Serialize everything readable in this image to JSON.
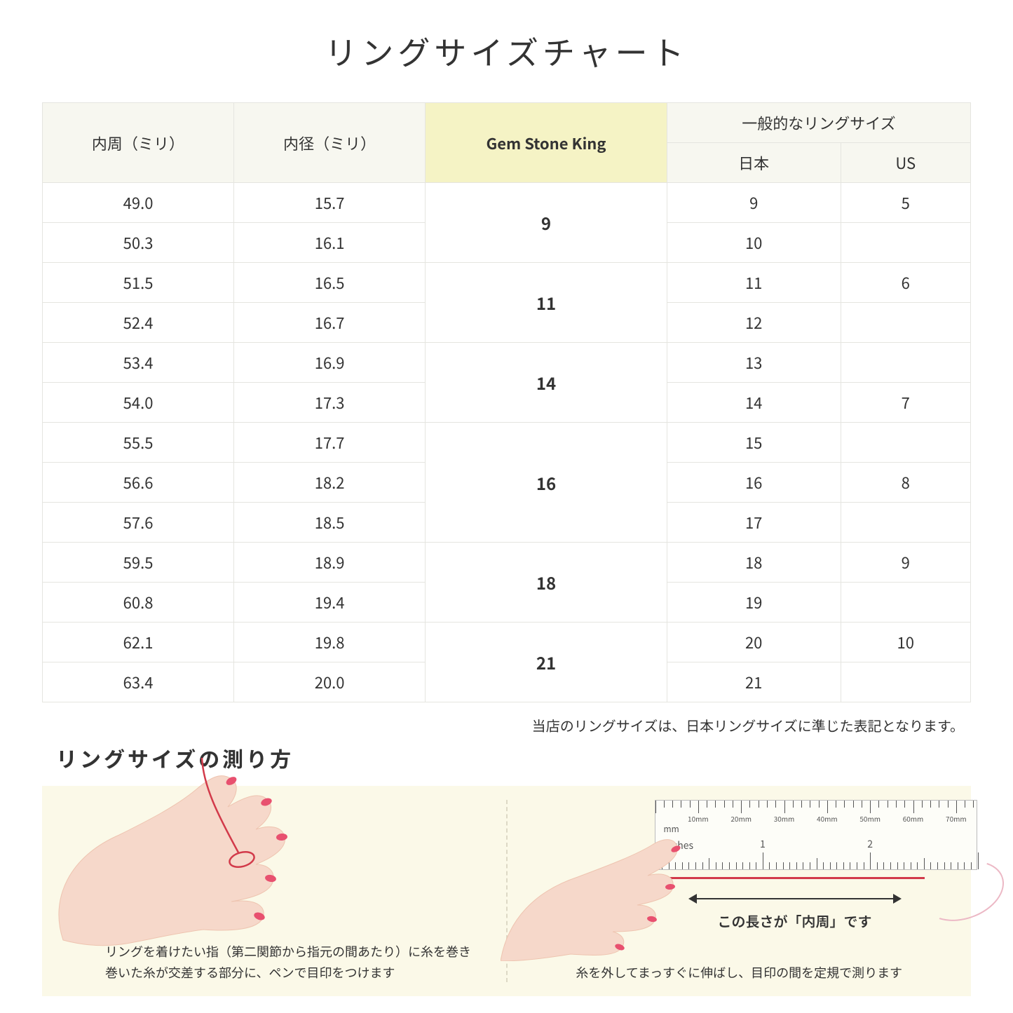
{
  "title": "リングサイズチャート",
  "table": {
    "headers": {
      "circumference": "内周（ミリ）",
      "diameter": "内径（ミリ）",
      "gsk": "Gem Stone King",
      "general": "一般的なリングサイズ",
      "japan": "日本",
      "us": "US"
    },
    "groups": [
      {
        "gsk": "9",
        "rowspan": 2,
        "rows": [
          {
            "circ": "49.0",
            "diam": "15.7",
            "jp": "9",
            "us": "5"
          },
          {
            "circ": "50.3",
            "diam": "16.1",
            "jp": "10",
            "us": ""
          }
        ]
      },
      {
        "gsk": "11",
        "rowspan": 2,
        "rows": [
          {
            "circ": "51.5",
            "diam": "16.5",
            "jp": "11",
            "us": "6"
          },
          {
            "circ": "52.4",
            "diam": "16.7",
            "jp": "12",
            "us": ""
          }
        ]
      },
      {
        "gsk": "14",
        "rowspan": 2,
        "rows": [
          {
            "circ": "53.4",
            "diam": "16.9",
            "jp": "13",
            "us": ""
          },
          {
            "circ": "54.0",
            "diam": "17.3",
            "jp": "14",
            "us": "7"
          }
        ]
      },
      {
        "gsk": "16",
        "rowspan": 3,
        "rows": [
          {
            "circ": "55.5",
            "diam": "17.7",
            "jp": "15",
            "us": ""
          },
          {
            "circ": "56.6",
            "diam": "18.2",
            "jp": "16",
            "us": "8"
          },
          {
            "circ": "57.6",
            "diam": "18.5",
            "jp": "17",
            "us": ""
          }
        ]
      },
      {
        "gsk": "18",
        "rowspan": 2,
        "rows": [
          {
            "circ": "59.5",
            "diam": "18.9",
            "jp": "18",
            "us": "9"
          },
          {
            "circ": "60.8",
            "diam": "19.4",
            "jp": "19",
            "us": ""
          }
        ]
      },
      {
        "gsk": "21",
        "rowspan": 2,
        "rows": [
          {
            "circ": "62.1",
            "diam": "19.8",
            "jp": "20",
            "us": "10"
          },
          {
            "circ": "63.4",
            "diam": "20.0",
            "jp": "21",
            "us": ""
          }
        ]
      }
    ]
  },
  "note": "当店のリングサイズは、日本リングサイズに準じた表記となります。",
  "howto": {
    "title": "リングサイズの測り方",
    "left_caption": "リングを着けたい指（第二関節から指元の間あたり）に糸を巻き\n巻いた糸が交差する部分に、ペンで目印をつけます",
    "right_caption": "糸を外してまっすぐに伸ばし、目印の間を定規で測ります",
    "measure_label": "この長さが「内周」です",
    "ruler": {
      "mm_caption": "mm",
      "inches_caption": "Inches",
      "mm_labels": [
        "10mm",
        "20mm",
        "30mm",
        "40mm",
        "50mm",
        "60mm",
        "70mm"
      ],
      "inch_labels": [
        "1",
        "2"
      ]
    }
  },
  "colors": {
    "header_bg": "#f7f7f0",
    "gsk_bg": "#f5f3c5",
    "border": "#e5e5e0",
    "howto_bg": "#fbf9e8",
    "skin": "#f6d8ca",
    "skin_shadow": "#eec4b0",
    "nail": "#e8506f",
    "thread": "#d23a4a"
  }
}
